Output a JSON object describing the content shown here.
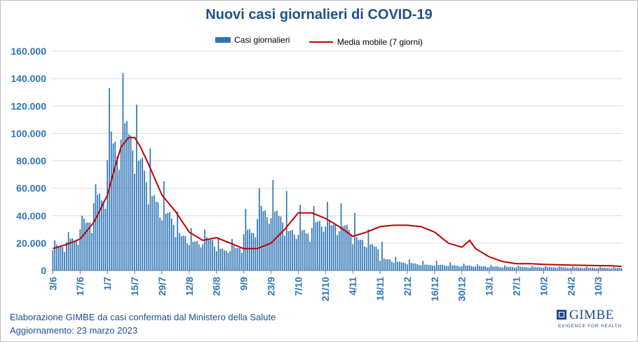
{
  "header": {
    "title": "Nuovi casi giornalieri di COVID-19"
  },
  "legend": {
    "bars_label": "Casi giornalieri",
    "line_label": "Media mobile (7 giorni)"
  },
  "footer": {
    "source": "Elaborazione GIMBE da casi confermati dal Ministero della Salute",
    "updated": "Aggiornamento: 23 marzo 2023"
  },
  "logo": {
    "name": "GIMBE",
    "tagline": "EVIDENCE FOR HEALTH"
  },
  "colors": {
    "bars": "#2e75b6",
    "line": "#c00000",
    "title": "#1f4e8c",
    "axis": "#2e75b6",
    "grid": "#d9d9d9"
  },
  "chart_data": {
    "type": "bar",
    "title": "Nuovi casi giornalieri di COVID-19",
    "ylim": [
      0,
      160000
    ],
    "yticks": [
      0,
      20000,
      40000,
      60000,
      80000,
      100000,
      120000,
      140000,
      160000
    ],
    "ytick_labels": [
      "0",
      "20.000",
      "40.000",
      "60.000",
      "80.000",
      "100.000",
      "120.000",
      "140.000",
      "160.000"
    ],
    "xtick_labels": [
      "3/6",
      "17/6",
      "1/7",
      "15/7",
      "29/7",
      "12/8",
      "26/8",
      "9/9",
      "23/9",
      "7/10",
      "21/10",
      "4/11",
      "18/11",
      "2/12",
      "16/12",
      "30/12",
      "13/1",
      "27/1",
      "10/2",
      "24/2",
      "10/3"
    ],
    "xtick_day_index": [
      0,
      14,
      28,
      42,
      56,
      70,
      84,
      98,
      112,
      126,
      140,
      154,
      168,
      182,
      196,
      210,
      224,
      238,
      252,
      266,
      280
    ],
    "grid": true,
    "legend_position": "top",
    "series": [
      {
        "name": "Casi giornalieri",
        "kind": "bar",
        "weekly_levels": [
          17000,
          22000,
          34000,
          52000,
          90000,
          100000,
          78000,
          50000,
          40000,
          25000,
          20000,
          22000,
          15000,
          16000,
          28000,
          42000,
          40000,
          28000,
          27000,
          34000,
          33000,
          31000,
          22000,
          18000,
          8000,
          6000,
          5000,
          4000,
          4000,
          3500,
          3500,
          3000,
          2800,
          2600,
          2500,
          2400,
          2300,
          2200,
          2100,
          2000,
          1900,
          1800,
          1700
        ],
        "weekly_peaks": [
          22000,
          28000,
          40000,
          63000,
          133000,
          144000,
          121000,
          89000,
          65000,
          43000,
          31000,
          30000,
          24000,
          23000,
          45000,
          60000,
          66000,
          58000,
          48000,
          47000,
          50000,
          49000,
          42000,
          30000,
          21000,
          10000,
          8000,
          7000,
          7000,
          6000,
          5000,
          4500,
          4000,
          3800,
          3500,
          3300,
          3200,
          3000,
          2900,
          2800,
          2700,
          2600,
          2500
        ]
      },
      {
        "name": "Media mobile (7 giorni)",
        "kind": "line",
        "days": [
          0,
          7,
          14,
          21,
          28,
          32,
          35,
          39,
          42,
          45,
          49,
          56,
          63,
          70,
          77,
          84,
          91,
          98,
          105,
          112,
          119,
          126,
          133,
          140,
          147,
          154,
          161,
          168,
          175,
          182,
          189,
          196,
          203,
          210,
          214,
          217,
          224,
          231,
          238,
          245,
          252,
          259,
          266,
          273,
          280,
          287,
          292
        ],
        "values": [
          16000,
          19000,
          23000,
          35000,
          55000,
          76000,
          90000,
          97000,
          97000,
          90000,
          78000,
          55000,
          43000,
          28000,
          22000,
          24000,
          20000,
          16000,
          16000,
          20000,
          30000,
          42000,
          42000,
          38000,
          32000,
          25000,
          28000,
          32000,
          33000,
          33000,
          32000,
          28000,
          20000,
          17000,
          22000,
          16000,
          10000,
          6500,
          5000,
          5000,
          4500,
          4200,
          4000,
          3800,
          3600,
          3400,
          3000
        ]
      }
    ],
    "days_total": 293
  }
}
